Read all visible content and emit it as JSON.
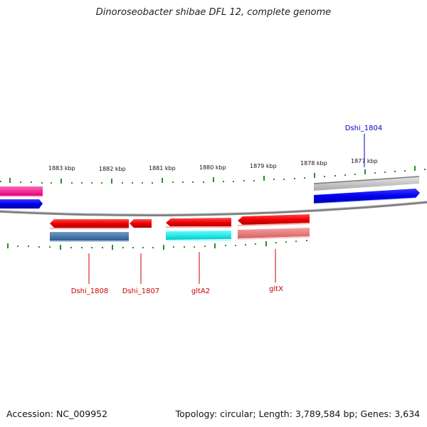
{
  "title": "Dinoroseobacter shibae DFL 12, complete genome",
  "footer": {
    "accession": "Accession: NC_009952",
    "summary": "Topology: circular; Length: 3,789,584 bp; Genes: 3,634"
  },
  "ruler_ticks": [
    {
      "label": "1883 kbp"
    },
    {
      "label": "1882 kbp"
    },
    {
      "label": "1881 kbp"
    },
    {
      "label": "1880 kbp"
    },
    {
      "label": "1879 kbp"
    },
    {
      "label": "1878 kbp"
    },
    {
      "label": "1877 kbp"
    }
  ],
  "gene_labels": [
    {
      "name": "Dshi_1804",
      "color": "#0000cc"
    },
    {
      "name": "Dshi_1808",
      "color": "#cc0000"
    },
    {
      "name": "Dshi_1807",
      "color": "#cc0000"
    },
    {
      "name": "gltA2",
      "color": "#cc0000"
    },
    {
      "name": "gltX",
      "color": "#cc0000"
    }
  ],
  "colors": {
    "forward_gene": "#0000ee",
    "reverse_gene": "#ee0000",
    "tick": "#2e8b2e",
    "backbone": "#808080"
  }
}
